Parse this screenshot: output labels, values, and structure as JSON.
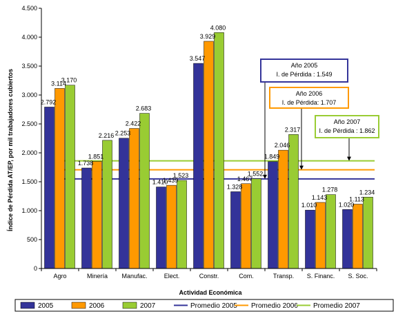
{
  "chart_data": {
    "type": "bar",
    "title": "",
    "xlabel": "Actividad Económica",
    "ylabel": "Índice de Pérdida AT/EP, por mil trabajadores cubiertos",
    "ylim": [
      0,
      4500
    ],
    "yticks": [
      0,
      500,
      1000,
      1500,
      2000,
      2500,
      3000,
      3500,
      4000,
      4500
    ],
    "ytick_labels": [
      "0",
      "500",
      "1.000",
      "1.500",
      "2.000",
      "2.500",
      "3.000",
      "3.500",
      "4.000",
      "4.500"
    ],
    "categories": [
      "Agro",
      "Minería",
      "Manufac.",
      "Elect.",
      "Constr.",
      "Com.",
      "Transp.",
      "S. Financ.",
      "S. Soc."
    ],
    "series": [
      {
        "name": "2005",
        "color": "#333399",
        "values": [
          2792,
          1738,
          2253,
          1410,
          3547,
          1328,
          1849,
          1010,
          1020
        ],
        "labels": [
          "2.792",
          "1.738",
          "2.253",
          "1.410",
          "3.547",
          "1.328",
          "1.849",
          "1.010",
          "1.020"
        ]
      },
      {
        "name": "2006",
        "color": "#FF9900",
        "values": [
          3114,
          1851,
          2422,
          1439,
          3929,
          1467,
          2046,
          1143,
          1113
        ],
        "labels": [
          "3.114",
          "1.851",
          "2.422",
          "1.439",
          "3.929",
          "1.467",
          "2.046",
          "1.143",
          "1.113"
        ]
      },
      {
        "name": "2007",
        "color": "#99CC33",
        "values": [
          3170,
          2216,
          2683,
          1523,
          4080,
          1552,
          2317,
          1278,
          1234
        ],
        "labels": [
          "3.170",
          "2.216",
          "2.683",
          "1.523",
          "4.080",
          "1.552",
          "2.317",
          "1.278",
          "1.234"
        ]
      }
    ],
    "averages": [
      {
        "name": "Promedio 2005",
        "value": 1549,
        "color": "#333399"
      },
      {
        "name": "Promedio 2006",
        "value": 1707,
        "color": "#FF9900"
      },
      {
        "name": "Promedio 2007",
        "value": 1862,
        "color": "#99CC33"
      }
    ],
    "annotations": [
      {
        "line1": "Año 2005",
        "line2": "I. de Pérdida : 1.549",
        "color": "#333399"
      },
      {
        "line1": "Año 2006",
        "line2": "I. de Pérdida: 1.707",
        "color": "#FF9900"
      },
      {
        "line1": "Año 2007",
        "line2": "I. de Pérdida : 1.862",
        "color": "#99CC33"
      }
    ],
    "grid": false,
    "legend_position": "bottom"
  }
}
